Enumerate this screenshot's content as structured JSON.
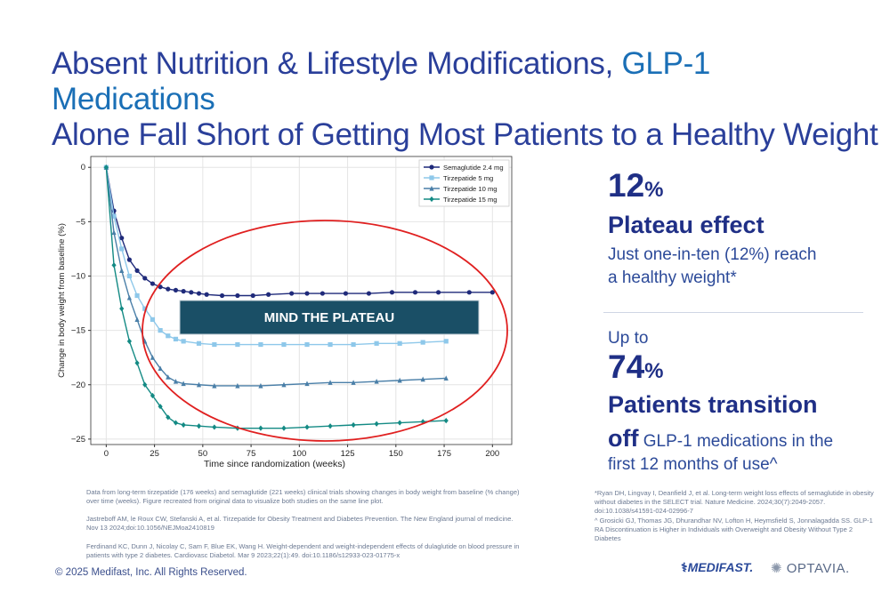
{
  "title": {
    "line1_prefix": "Absent Nutrition & Lifestyle Modifications, ",
    "line1_highlight": "GLP-1 Medications",
    "line2": "Alone Fall Short of Getting Most Patients to a Healthy Weight"
  },
  "stats": {
    "stat1_number": "12",
    "stat1_pct": "%",
    "stat1_heading": "Plateau effect",
    "stat1_text_line1": "Just one-in-ten (12%) reach",
    "stat1_text_line2": "a healthy weight*",
    "stat2_prefix": "Up to",
    "stat2_number": "74",
    "stat2_pct": "%",
    "stat2_heading": "Patients transition",
    "stat2_off": "off",
    "stat2_text_line1": " GLP-1 medications in the",
    "stat2_text_line2": "first 12 months of use^"
  },
  "footnotes": {
    "left1": "Data from long-term tirzepatide (176 weeks) and semaglutide (221 weeks) clinical trials showing changes in body weight from baseline (% change) over time (weeks). Figure recreated from original data to visualize both studies on the same line plot.",
    "left2": "Jastreboff AM, le Roux CW, Stefanski A, et al. Tirzepatide for Obesity Treatment and Diabetes Prevention. The New England journal of medicine. Nov 13 2024;doi:10.1056/NEJMoa2410819",
    "left3": "Ferdinand KC, Dunn J, Nicolay C, Sam F, Blue EK, Wang H. Weight-dependent and weight-independent effects of dulaglutide on blood pressure in patients with type 2 diabetes. Cardiovasc Diabetol. Mar 9 2023;22(1):49. doi:10.1186/s12933-023-01775-x",
    "right1": "*Ryan DH, Lingvay I, Deanfield J, et al. Long-term weight loss effects of semaglutide in obesity without diabetes in the SELECT trial. Nature Medicine. 2024;30(7):2049-2057. doi:10.1038/s41591-024-02996-7",
    "right2": "^ Grosicki GJ, Thomas JG, Dhurandhar NV, Lofton H, Heymsfield S, Jonnalagadda SS. GLP-1 RA Discontinuation is Higher in Individuals with Overweight and Obesity Without Type 2 Diabetes"
  },
  "copyright": "© 2025 Medifast, Inc. All Rights Reserved.",
  "logos": {
    "medifast": "MEDIFAST.",
    "optavia": "OPTAVIA."
  },
  "colors": {
    "title": "#2a3f9a",
    "highlight": "#1a6fb6",
    "semaglutide": "#1f2a7a",
    "tirzepatide5": "#8ec8ea",
    "tirzepatide10": "#4a7fa8",
    "tirzepatide15": "#138a84",
    "plateau_box": "#1a4f66",
    "ellipse": "#e02020"
  },
  "chart_data": {
    "type": "line",
    "xlabel": "Time since randomization (weeks)",
    "ylabel": "Change in body weight from baseline (%)",
    "xlim": [
      -8,
      210
    ],
    "ylim": [
      -25.5,
      1
    ],
    "xticks": [
      0,
      25,
      50,
      75,
      100,
      125,
      150,
      175,
      200
    ],
    "yticks": [
      0,
      -5,
      -10,
      -15,
      -20,
      -25
    ],
    "grid": true,
    "legend_position": "top-right",
    "annotation": "MIND THE PLATEAU",
    "series": [
      {
        "name": "Semaglutide 2.4 mg",
        "marker": "circle",
        "x": [
          0,
          4,
          8,
          12,
          16,
          20,
          24,
          28,
          32,
          36,
          40,
          44,
          48,
          52,
          60,
          68,
          76,
          84,
          96,
          104,
          112,
          124,
          136,
          148,
          160,
          172,
          188,
          200
        ],
        "y": [
          0,
          -4,
          -6.5,
          -8.5,
          -9.5,
          -10.2,
          -10.7,
          -11,
          -11.2,
          -11.3,
          -11.4,
          -11.5,
          -11.6,
          -11.7,
          -11.8,
          -11.8,
          -11.8,
          -11.7,
          -11.6,
          -11.6,
          -11.6,
          -11.6,
          -11.6,
          -11.5,
          -11.5,
          -11.5,
          -11.5,
          -11.5
        ]
      },
      {
        "name": "Tirzepatide 5 mg",
        "marker": "square",
        "x": [
          0,
          4,
          8,
          12,
          16,
          20,
          24,
          28,
          32,
          36,
          40,
          48,
          56,
          68,
          80,
          92,
          104,
          116,
          128,
          140,
          152,
          164,
          176
        ],
        "y": [
          0,
          -4.5,
          -7.5,
          -10,
          -11.8,
          -13,
          -14,
          -15,
          -15.5,
          -15.8,
          -16,
          -16.2,
          -16.3,
          -16.3,
          -16.3,
          -16.3,
          -16.3,
          -16.3,
          -16.3,
          -16.2,
          -16.2,
          -16.1,
          -16
        ]
      },
      {
        "name": "Tirzepatide 10 mg",
        "marker": "triangle",
        "x": [
          0,
          4,
          8,
          12,
          16,
          20,
          24,
          28,
          32,
          36,
          40,
          48,
          56,
          68,
          80,
          92,
          104,
          116,
          128,
          140,
          152,
          164,
          176
        ],
        "y": [
          0,
          -6,
          -9.5,
          -12,
          -14,
          -16,
          -17.5,
          -18.5,
          -19.3,
          -19.7,
          -19.9,
          -20,
          -20.1,
          -20.1,
          -20.1,
          -20,
          -19.9,
          -19.8,
          -19.8,
          -19.7,
          -19.6,
          -19.5,
          -19.4
        ]
      },
      {
        "name": "Tirzepatide 15 mg",
        "marker": "diamond",
        "x": [
          0,
          4,
          8,
          12,
          16,
          20,
          24,
          28,
          32,
          36,
          40,
          48,
          56,
          68,
          80,
          92,
          104,
          116,
          128,
          140,
          152,
          164,
          176
        ],
        "y": [
          0,
          -9,
          -13,
          -16,
          -18,
          -20,
          -21,
          -22,
          -23,
          -23.5,
          -23.7,
          -23.8,
          -23.9,
          -24,
          -24,
          -24,
          -23.9,
          -23.8,
          -23.7,
          -23.6,
          -23.5,
          -23.4,
          -23.3
        ]
      }
    ]
  }
}
